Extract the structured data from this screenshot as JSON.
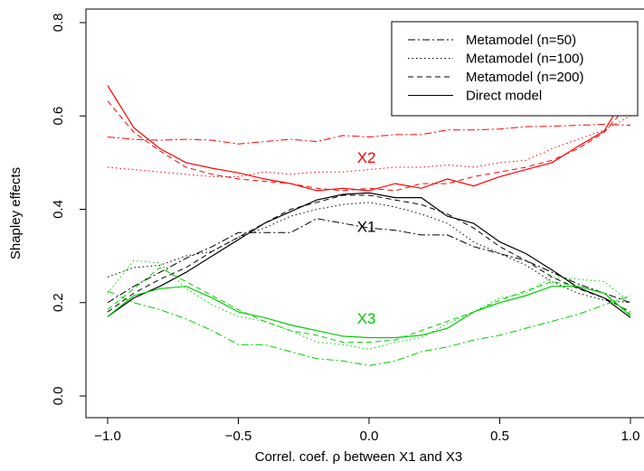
{
  "chart_data": {
    "type": "line",
    "title": "",
    "xlabel": "Correl. coef. ρ between X1 and X3",
    "ylabel": "Shapley effects",
    "xlim": [
      -1.0,
      1.0
    ],
    "ylim": [
      0.0,
      0.8
    ],
    "xticks": [
      "-1.0",
      "-0.5",
      "0.0",
      "0.5",
      "1.0"
    ],
    "yticks": [
      "0.0",
      "0.2",
      "0.4",
      "0.6",
      "0.8"
    ],
    "x": [
      -1.0,
      -0.9,
      -0.8,
      -0.7,
      -0.6,
      -0.5,
      -0.4,
      -0.3,
      -0.2,
      -0.1,
      0.0,
      0.1,
      0.2,
      0.3,
      0.4,
      0.5,
      0.6,
      0.7,
      0.8,
      0.9,
      1.0
    ],
    "grid": false,
    "legend_position": "top-right",
    "legend": [
      {
        "label": "Metamodel (n=50)",
        "dash": "dashdot"
      },
      {
        "label": "Metamodel (n=100)",
        "dash": "dotted"
      },
      {
        "label": "Metamodel (n=200)",
        "dash": "dashed"
      },
      {
        "label": "Direct model",
        "dash": "solid"
      }
    ],
    "annotations": [
      {
        "text": "X2",
        "x": -0.01,
        "y": 0.5,
        "color": "#ff0000"
      },
      {
        "text": "X1",
        "x": -0.01,
        "y": 0.352,
        "color": "#000000"
      },
      {
        "text": "X3",
        "x": -0.01,
        "y": 0.155,
        "color": "#00cc00"
      }
    ],
    "series": [
      {
        "variable": "X2",
        "legend": "Direct model",
        "dash": "solid",
        "color": "#ff0000",
        "values": [
          0.665,
          0.575,
          0.53,
          0.5,
          0.488,
          0.478,
          0.465,
          0.455,
          0.44,
          0.445,
          0.44,
          0.455,
          0.445,
          0.465,
          0.45,
          0.47,
          0.485,
          0.5,
          0.535,
          0.568,
          0.662
        ]
      },
      {
        "variable": "X2",
        "legend": "Metamodel (n=50)",
        "dash": "dashdot",
        "color": "#ff0000",
        "values": [
          0.555,
          0.55,
          0.548,
          0.55,
          0.548,
          0.54,
          0.545,
          0.55,
          0.545,
          0.558,
          0.555,
          0.56,
          0.56,
          0.57,
          0.57,
          0.572,
          0.577,
          0.578,
          0.58,
          0.582,
          0.58
        ]
      },
      {
        "variable": "X2",
        "legend": "Metamodel (n=100)",
        "dash": "dotted",
        "color": "#ff0000",
        "values": [
          0.49,
          0.485,
          0.48,
          0.475,
          0.47,
          0.47,
          0.48,
          0.475,
          0.48,
          0.48,
          0.485,
          0.49,
          0.49,
          0.495,
          0.49,
          0.5,
          0.505,
          0.53,
          0.55,
          0.57,
          0.6
        ]
      },
      {
        "variable": "X2",
        "legend": "Metamodel (n=200)",
        "dash": "dashed",
        "color": "#ff0000",
        "values": [
          0.632,
          0.565,
          0.525,
          0.49,
          0.475,
          0.465,
          0.46,
          0.455,
          0.445,
          0.44,
          0.445,
          0.44,
          0.455,
          0.455,
          0.47,
          0.48,
          0.49,
          0.505,
          0.53,
          0.565,
          0.63
        ]
      },
      {
        "variable": "X1",
        "legend": "Direct model",
        "dash": "solid",
        "color": "#000000",
        "values": [
          0.17,
          0.21,
          0.235,
          0.265,
          0.3,
          0.335,
          0.37,
          0.395,
          0.42,
          0.432,
          0.435,
          0.425,
          0.425,
          0.385,
          0.37,
          0.33,
          0.305,
          0.27,
          0.232,
          0.21,
          0.168
        ]
      },
      {
        "variable": "X1",
        "legend": "Metamodel (n=50)",
        "dash": "dashdot",
        "color": "#000000",
        "values": [
          0.2,
          0.235,
          0.265,
          0.295,
          0.32,
          0.35,
          0.35,
          0.35,
          0.38,
          0.37,
          0.36,
          0.355,
          0.345,
          0.345,
          0.32,
          0.305,
          0.29,
          0.265,
          0.24,
          0.22,
          0.2
        ]
      },
      {
        "variable": "X1",
        "legend": "Metamodel (n=100)",
        "dash": "dotted",
        "color": "#000000",
        "values": [
          0.255,
          0.275,
          0.28,
          0.3,
          0.31,
          0.34,
          0.36,
          0.385,
          0.4,
          0.41,
          0.415,
          0.405,
          0.39,
          0.37,
          0.33,
          0.305,
          0.28,
          0.245,
          0.22,
          0.205,
          0.2
        ]
      },
      {
        "variable": "X1",
        "legend": "Metamodel (n=200)",
        "dash": "dashed",
        "color": "#000000",
        "values": [
          0.18,
          0.22,
          0.25,
          0.275,
          0.31,
          0.34,
          0.37,
          0.4,
          0.415,
          0.43,
          0.43,
          0.42,
          0.41,
          0.39,
          0.36,
          0.32,
          0.29,
          0.255,
          0.23,
          0.21,
          0.18
        ]
      },
      {
        "variable": "X3",
        "legend": "Direct model",
        "dash": "solid",
        "color": "#00cc00",
        "values": [
          0.17,
          0.215,
          0.23,
          0.235,
          0.21,
          0.18,
          0.168,
          0.152,
          0.14,
          0.128,
          0.125,
          0.125,
          0.13,
          0.145,
          0.18,
          0.2,
          0.215,
          0.235,
          0.235,
          0.22,
          0.172
        ]
      },
      {
        "variable": "X3",
        "legend": "Metamodel (n=50)",
        "dash": "dashdot",
        "color": "#00cc00",
        "values": [
          0.225,
          0.2,
          0.185,
          0.165,
          0.14,
          0.11,
          0.11,
          0.095,
          0.08,
          0.075,
          0.065,
          0.075,
          0.095,
          0.105,
          0.12,
          0.13,
          0.145,
          0.16,
          0.175,
          0.195,
          0.215
        ]
      },
      {
        "variable": "X3",
        "legend": "Metamodel (n=100)",
        "dash": "dotted",
        "color": "#00cc00",
        "values": [
          0.22,
          0.29,
          0.285,
          0.23,
          0.195,
          0.17,
          0.16,
          0.14,
          0.115,
          0.11,
          0.1,
          0.115,
          0.125,
          0.155,
          0.18,
          0.21,
          0.22,
          0.255,
          0.25,
          0.245,
          0.2
        ]
      },
      {
        "variable": "X3",
        "legend": "Metamodel (n=200)",
        "dash": "dashed",
        "color": "#00cc00",
        "values": [
          0.185,
          0.23,
          0.275,
          0.245,
          0.215,
          0.185,
          0.16,
          0.14,
          0.13,
          0.115,
          0.115,
          0.12,
          0.14,
          0.16,
          0.18,
          0.205,
          0.225,
          0.245,
          0.235,
          0.22,
          0.175
        ]
      }
    ]
  }
}
